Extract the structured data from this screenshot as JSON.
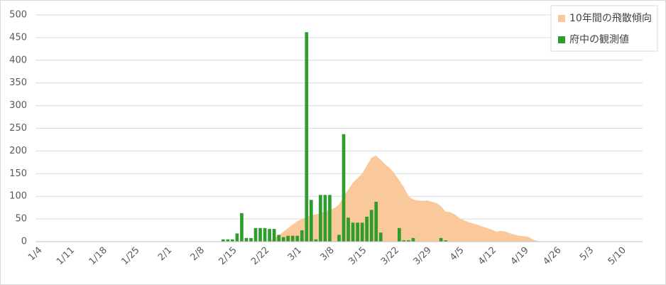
{
  "chart_data": {
    "type": "combo",
    "categories": [
      "1/4",
      null,
      null,
      null,
      null,
      null,
      null,
      "1/11",
      null,
      null,
      null,
      null,
      null,
      null,
      "1/18",
      null,
      null,
      null,
      null,
      null,
      null,
      "1/25",
      null,
      null,
      null,
      null,
      null,
      null,
      "2/1",
      null,
      null,
      null,
      null,
      null,
      null,
      "2/8",
      null,
      null,
      null,
      null,
      null,
      null,
      "2/15",
      null,
      null,
      null,
      null,
      null,
      null,
      "2/22",
      null,
      null,
      null,
      null,
      null,
      null,
      "3/1",
      null,
      null,
      null,
      null,
      null,
      null,
      "3/8",
      null,
      null,
      null,
      null,
      null,
      null,
      "3/15",
      null,
      null,
      null,
      null,
      null,
      null,
      "3/22",
      null,
      null,
      null,
      null,
      null,
      null,
      "3/29",
      null,
      null,
      null,
      null,
      null,
      null,
      "4/5",
      null,
      null,
      null,
      null,
      null,
      null,
      "4/12",
      null,
      null,
      null,
      null,
      null,
      null,
      "4/19",
      null,
      null,
      null,
      null,
      null,
      null,
      "4/26",
      null,
      null,
      null,
      null,
      null,
      null,
      "5/3",
      null,
      null,
      null,
      null,
      null,
      null,
      "5/10",
      null,
      null,
      null,
      null
    ],
    "series": [
      {
        "name": "10年間の飛散傾向",
        "type": "area",
        "color": "#f9c99b",
        "values": [
          0,
          0,
          0,
          0,
          0,
          0,
          0,
          0,
          0,
          0,
          0,
          0,
          0,
          0,
          0,
          0,
          0,
          0,
          0,
          0,
          0,
          0,
          0,
          0,
          0,
          0,
          0,
          0,
          0,
          0,
          0,
          0,
          0,
          0,
          0,
          0,
          0,
          0,
          0,
          0,
          0,
          0,
          0,
          0,
          0,
          0,
          0,
          0,
          0,
          0,
          2,
          8,
          14,
          22,
          30,
          38,
          45,
          50,
          55,
          58,
          60,
          63,
          66,
          70,
          74,
          82,
          100,
          115,
          130,
          140,
          150,
          168,
          185,
          190,
          180,
          170,
          162,
          150,
          135,
          120,
          100,
          93,
          91,
          90,
          91,
          88,
          85,
          78,
          66,
          65,
          60,
          52,
          47,
          43,
          40,
          37,
          33,
          30,
          26,
          22,
          24,
          22,
          18,
          15,
          13,
          12,
          10,
          4,
          1,
          0,
          0,
          0,
          0,
          0,
          0,
          0,
          0,
          0,
          0,
          0,
          0,
          0,
          0,
          0,
          0,
          0,
          0,
          0,
          0,
          0,
          0
        ]
      },
      {
        "name": "府中の観測値",
        "type": "bar",
        "color": "#2e9d2e",
        "values": [
          0,
          0,
          0,
          0,
          0,
          0,
          0,
          0,
          0,
          0,
          0,
          0,
          0,
          0,
          0,
          0,
          0,
          0,
          0,
          0,
          0,
          0,
          0,
          0,
          0,
          0,
          0,
          0,
          0,
          0,
          0,
          0,
          0,
          0,
          0,
          0,
          0,
          0,
          0,
          0,
          5,
          5,
          5,
          18,
          63,
          8,
          8,
          30,
          30,
          30,
          28,
          28,
          15,
          10,
          13,
          13,
          13,
          25,
          462,
          92,
          5,
          103,
          103,
          103,
          0,
          15,
          237,
          53,
          42,
          42,
          42,
          55,
          70,
          88,
          20,
          0,
          0,
          0,
          30,
          3,
          3,
          8,
          0,
          0,
          0,
          0,
          0,
          8,
          3,
          0,
          0,
          0,
          0,
          0,
          0,
          0,
          0,
          0,
          0,
          0,
          0,
          0,
          0,
          0,
          0,
          0,
          0,
          0,
          0,
          0,
          0,
          0,
          0,
          0,
          0,
          0,
          0,
          0,
          0,
          0,
          0,
          0,
          0,
          0,
          0,
          0,
          0,
          0,
          0,
          0,
          0
        ]
      }
    ],
    "ylim": [
      0,
      500
    ],
    "yticks": [
      0,
      50,
      100,
      150,
      200,
      250,
      300,
      350,
      400,
      450,
      500
    ],
    "grid": true,
    "legend": "top-right"
  }
}
